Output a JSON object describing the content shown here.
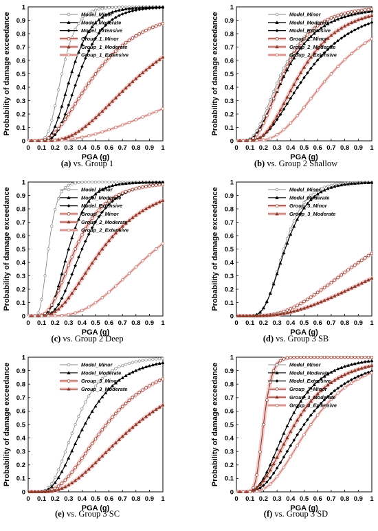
{
  "figure": {
    "charts": [
      {
        "id": "a",
        "caption_letter": "(a)",
        "caption_text": " vs. Group 1",
        "xlabel": "PGA (g)",
        "ylabel": "Probability of damage exceedance",
        "xticks": [
          "0",
          "0.1",
          "0.2",
          "0.3",
          "0.4",
          "0.5",
          "0.6",
          "0.7",
          "0.8",
          "0.9",
          "1"
        ],
        "yticks": [
          "0",
          "0.1",
          "0.2",
          "0.3",
          "0.4",
          "0.5",
          "0.6",
          "0.7",
          "0.8",
          "0.9",
          "1"
        ],
        "legend": [
          "Model_Minor",
          "Model_Moderate",
          "Model_Extensive",
          "Group_1_Minor",
          "Group_1_Moderate",
          "Group_1_Extensive"
        ]
      },
      {
        "id": "b",
        "caption_letter": "(b)",
        "caption_text": " vs. Group 2 Shallow",
        "xlabel": "PGA (g)",
        "ylabel": "Probability of damage exceedance",
        "xticks": [
          "0",
          "0.1",
          "0.2",
          "0.3",
          "0.4",
          "0.5",
          "0.6",
          "0.7",
          "0.8",
          "0.9",
          "1"
        ],
        "yticks": [
          "0",
          "0.1",
          "0.2",
          "0.3",
          "0.4",
          "0.5",
          "0.6",
          "0.7",
          "0.8",
          "0.9",
          "1"
        ],
        "legend": [
          "Model_Minor",
          "Model_Moderate",
          "Model_Extensive",
          "Group_2_Minor",
          "Group_2_Moderate",
          "Group_2_Extensive"
        ]
      },
      {
        "id": "c",
        "caption_letter": "(c)",
        "caption_text": " vs. Group 2 Deep",
        "xlabel": "PGA (g)",
        "ylabel": "Probability of damage exceedance",
        "xticks": [
          "0",
          "0.1",
          "0.2",
          "0.3",
          "0.4",
          "0.5",
          "0.6",
          "0.7",
          "0.8",
          "0.9",
          "1"
        ],
        "yticks": [
          "0",
          "0.1",
          "0.2",
          "0.3",
          "0.4",
          "0.5",
          "0.6",
          "0.7",
          "0.8",
          "0.9",
          "1"
        ],
        "legend": [
          "Model_Minor",
          "Model_Moderate",
          "Model_Extensive",
          "Group_2_Minor",
          "Group_2_Moderate",
          "Group_2_Extensive"
        ]
      },
      {
        "id": "d",
        "caption_letter": "(d)",
        "caption_text": " vs. Group 3 SB",
        "xlabel": "PGA (g)",
        "ylabel": "Probability of damage exceedance",
        "xticks": [
          "0",
          "0.1",
          "0.2",
          "0.3",
          "0.4",
          "0.5",
          "0.6",
          "0.7",
          "0.8",
          "0.9",
          "1"
        ],
        "yticks": [
          "0",
          "0.1",
          "0.2",
          "0.3",
          "0.4",
          "0.5",
          "0.6",
          "0.7",
          "0.8",
          "0.9",
          "1"
        ],
        "legend": [
          "Model_Minor",
          "Model_Moderate",
          "Group_3_Minor",
          "Group_3_Moderate"
        ]
      },
      {
        "id": "e",
        "caption_letter": "(e)",
        "caption_text": " vs. Group 3 SC",
        "xlabel": "PGA (g)",
        "ylabel": "Probability of damage exceedance",
        "xticks": [
          "0",
          "0.1",
          "0.2",
          "0.3",
          "0.4",
          "0.5",
          "0.6",
          "0.7",
          "0.8",
          "0.9",
          "1"
        ],
        "yticks": [
          "0",
          "0.1",
          "0.2",
          "0.3",
          "0.4",
          "0.5",
          "0.6",
          "0.7",
          "0.8",
          "0.9",
          "1"
        ],
        "legend": [
          "Model_Minor",
          "Model_Moderate",
          "Group_3_Minor",
          "Group_3_Moderate"
        ]
      },
      {
        "id": "f",
        "caption_letter": "(f)",
        "caption_text": " vs. Group 3 SD",
        "xlabel": "PGA (g)",
        "ylabel": "Probability of damage exceedance",
        "xticks": [
          "0",
          "0.1",
          "0.2",
          "0.3",
          "0.4",
          "0.5",
          "0.6",
          "0.7",
          "0.8",
          "0.9",
          "1"
        ],
        "yticks": [
          "0",
          "0.1",
          "0.2",
          "0.3",
          "0.4",
          "0.5",
          "0.6",
          "0.7",
          "0.8",
          "0.9",
          "1"
        ],
        "legend": [
          "Model_Minor",
          "Model_Moderate",
          "Model_Extensive",
          "Group_3_Minor",
          "Group_3_Moderate",
          "Group_3_Extensive"
        ]
      }
    ]
  },
  "chart_data": [
    {
      "id": "a",
      "type": "line",
      "xlabel": "PGA (g)",
      "ylabel": "Probability of damage exceedance",
      "xlim": [
        0,
        1
      ],
      "ylim": [
        0,
        1
      ],
      "grid": false,
      "legend_position": "top-right",
      "series": [
        {
          "name": "Model_Minor",
          "style": "model",
          "marker": "circle",
          "median": 0.25,
          "beta": 0.35
        },
        {
          "name": "Model_Moderate",
          "style": "model",
          "marker": "triangle",
          "median": 0.32,
          "beta": 0.38
        },
        {
          "name": "Model_Extensive",
          "style": "model",
          "marker": "diamond",
          "median": 0.38,
          "beta": 0.38
        },
        {
          "name": "Group_1_Minor",
          "style": "group",
          "marker": "circle",
          "median": 0.5,
          "beta": 0.6
        },
        {
          "name": "Group_1_Moderate",
          "style": "group",
          "marker": "triangle",
          "median": 0.84,
          "beta": 0.55
        },
        {
          "name": "Group_1_Extensive",
          "style": "group-thin",
          "marker": "circle",
          "median": 1.7,
          "beta": 0.75
        }
      ]
    },
    {
      "id": "b",
      "type": "line",
      "xlabel": "PGA (g)",
      "ylabel": "Probability of damage exceedance",
      "xlim": [
        0,
        1
      ],
      "ylim": [
        0,
        1
      ],
      "grid": false,
      "legend_position": "top-right",
      "series": [
        {
          "name": "Model_Minor",
          "style": "model",
          "marker": "circle",
          "median": 0.33,
          "beta": 0.55
        },
        {
          "name": "Model_Moderate",
          "style": "model",
          "marker": "triangle",
          "median": 0.36,
          "beta": 0.55
        },
        {
          "name": "Model_Extensive",
          "style": "model",
          "marker": "diamond",
          "median": 0.52,
          "beta": 0.55
        },
        {
          "name": "Group_2_Minor",
          "style": "group",
          "marker": "circle",
          "median": 0.35,
          "beta": 0.5
        },
        {
          "name": "Group_2_Moderate",
          "style": "group",
          "marker": "triangle",
          "median": 0.47,
          "beta": 0.5
        },
        {
          "name": "Group_2_Extensive",
          "style": "group-thin",
          "marker": "circle",
          "median": 0.7,
          "beta": 0.5
        }
      ]
    },
    {
      "id": "c",
      "type": "line",
      "xlabel": "PGA (g)",
      "ylabel": "Probability of damage exceedance",
      "xlim": [
        0,
        1
      ],
      "ylim": [
        0,
        1
      ],
      "grid": false,
      "legend_position": "top-right",
      "series": [
        {
          "name": "Model_Minor",
          "style": "model",
          "marker": "circle",
          "median": 0.15,
          "beta": 0.35
        },
        {
          "name": "Model_Moderate",
          "style": "model",
          "marker": "triangle",
          "median": 0.3,
          "beta": 0.38
        },
        {
          "name": "Model_Extensive",
          "style": "model",
          "marker": "diamond",
          "median": 0.4,
          "beta": 0.42
        },
        {
          "name": "Group_2_Minor",
          "style": "group",
          "marker": "circle",
          "median": 0.35,
          "beta": 0.5
        },
        {
          "name": "Group_2_Moderate",
          "style": "group",
          "marker": "triangle",
          "median": 0.55,
          "beta": 0.55
        },
        {
          "name": "Group_2_Extensive",
          "style": "group-thin",
          "marker": "circle",
          "median": 0.95,
          "beta": 0.5
        }
      ]
    },
    {
      "id": "d",
      "type": "line",
      "xlabel": "PGA (g)",
      "ylabel": "Probability of damage exceedance",
      "xlim": [
        0,
        1
      ],
      "ylim": [
        0,
        1
      ],
      "grid": false,
      "legend_position": "top-right",
      "series": [
        {
          "name": "Model_Minor",
          "style": "model",
          "marker": "circle",
          "median": 0.35,
          "beta": 0.35
        },
        {
          "name": "Model_Moderate",
          "style": "model",
          "marker": "triangle",
          "median": 0.36,
          "beta": 0.38
        },
        {
          "name": "Group_3_Minor",
          "style": "group",
          "marker": "circle",
          "median": 1.05,
          "beta": 0.6
        },
        {
          "name": "Group_3_Moderate",
          "style": "group",
          "marker": "triangle",
          "median": 1.5,
          "beta": 0.7
        }
      ]
    },
    {
      "id": "e",
      "type": "line",
      "xlabel": "PGA (g)",
      "ylabel": "Probability of damage exceedance",
      "xlim": [
        0,
        1
      ],
      "ylim": [
        0,
        1
      ],
      "grid": false,
      "legend_position": "top-right",
      "series": [
        {
          "name": "Model_Minor",
          "style": "model",
          "marker": "circle",
          "median": 0.35,
          "beta": 0.45
        },
        {
          "name": "Model_Moderate",
          "style": "model",
          "marker": "triangle",
          "median": 0.42,
          "beta": 0.5
        },
        {
          "name": "Group_3_Minor",
          "style": "group",
          "marker": "circle",
          "median": 0.58,
          "beta": 0.55
        },
        {
          "name": "Group_3_Moderate",
          "style": "group",
          "marker": "triangle",
          "median": 0.8,
          "beta": 0.6
        }
      ]
    },
    {
      "id": "f",
      "type": "line",
      "xlabel": "PGA (g)",
      "ylabel": "Probability of damage exceedance",
      "xlim": [
        0,
        1
      ],
      "ylim": [
        0,
        1
      ],
      "grid": false,
      "legend_position": "top-right",
      "series": [
        {
          "name": "Model_Minor",
          "style": "model",
          "marker": "circle",
          "median": 0.2,
          "beta": 0.25
        },
        {
          "name": "Model_Moderate",
          "style": "model",
          "marker": "triangle",
          "median": 0.38,
          "beta": 0.5
        },
        {
          "name": "Model_Extensive",
          "style": "model",
          "marker": "diamond",
          "median": 0.5,
          "beta": 0.55
        },
        {
          "name": "Group_3_Minor",
          "style": "group",
          "marker": "circle",
          "median": 0.2,
          "beta": 0.25
        },
        {
          "name": "Group_3_Moderate",
          "style": "group",
          "marker": "triangle",
          "median": 0.43,
          "beta": 0.55
        },
        {
          "name": "Group_3_Extensive",
          "style": "group-thin",
          "marker": "circle",
          "median": 0.55,
          "beta": 0.5
        }
      ]
    }
  ],
  "colors": {
    "model_minor": "#888888",
    "model": "#000000",
    "group": "#8b3a2a",
    "group_halo": "#f2c4c4",
    "group_thin": "#b86a60"
  }
}
